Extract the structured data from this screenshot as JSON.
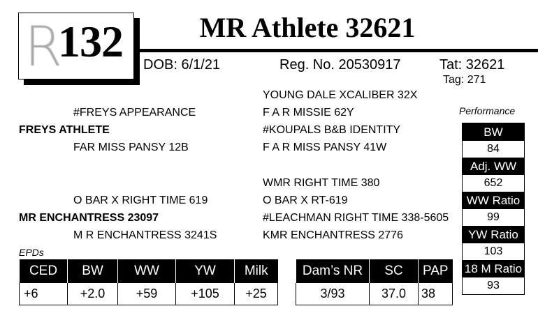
{
  "lot": {
    "logo_letter": "R",
    "number": "132"
  },
  "title": "MR Athlete 32621",
  "info": {
    "dob": "DOB: 6/1/21",
    "reg": "Reg. No. 20530917",
    "tat": "Tat: 32621",
    "tag": "Tag: 271"
  },
  "pedigree": {
    "sire": "FREYS ATHLETE",
    "sire_sire": "#FREYS APPEARANCE",
    "sire_dam": "FAR MISS PANSY 12B",
    "sss": "YOUNG DALE XCALIBER 32X",
    "ssd": "F A R MISSIE 62Y",
    "sds": "#KOUPALS B&B IDENTITY",
    "sdd": "F A R MISS PANSY 41W",
    "dam": "MR ENCHANTRESS 23097",
    "dam_sire": "O BAR X RIGHT TIME 619",
    "dam_dam": "M R ENCHANTRESS 3241S",
    "dss": "WMR RIGHT TIME 380",
    "dsd": "O BAR X RT-619",
    "dds": "#LEACHMAN RIGHT TIME 338-5605",
    "ddd": "KMR ENCHANTRESS 2776"
  },
  "epds": {
    "label": "EPDs",
    "headers": [
      "CED",
      "BW",
      "WW",
      "YW",
      "Milk"
    ],
    "values": [
      "+6",
      "+2.0",
      "+59",
      "+105",
      "+25"
    ]
  },
  "extra": {
    "headers": [
      "Dam’s NR",
      "SC",
      "PAP"
    ],
    "values": [
      "3/93",
      "37.0",
      "38"
    ]
  },
  "performance": {
    "label": "Performance",
    "items": [
      {
        "label": "BW",
        "value": "84"
      },
      {
        "label": "Adj. WW",
        "value": "652"
      },
      {
        "label": "WW Ratio",
        "value": "99"
      },
      {
        "label": "YW Ratio",
        "value": "103"
      },
      {
        "label": "18 M Ratio",
        "value": "93"
      }
    ]
  }
}
